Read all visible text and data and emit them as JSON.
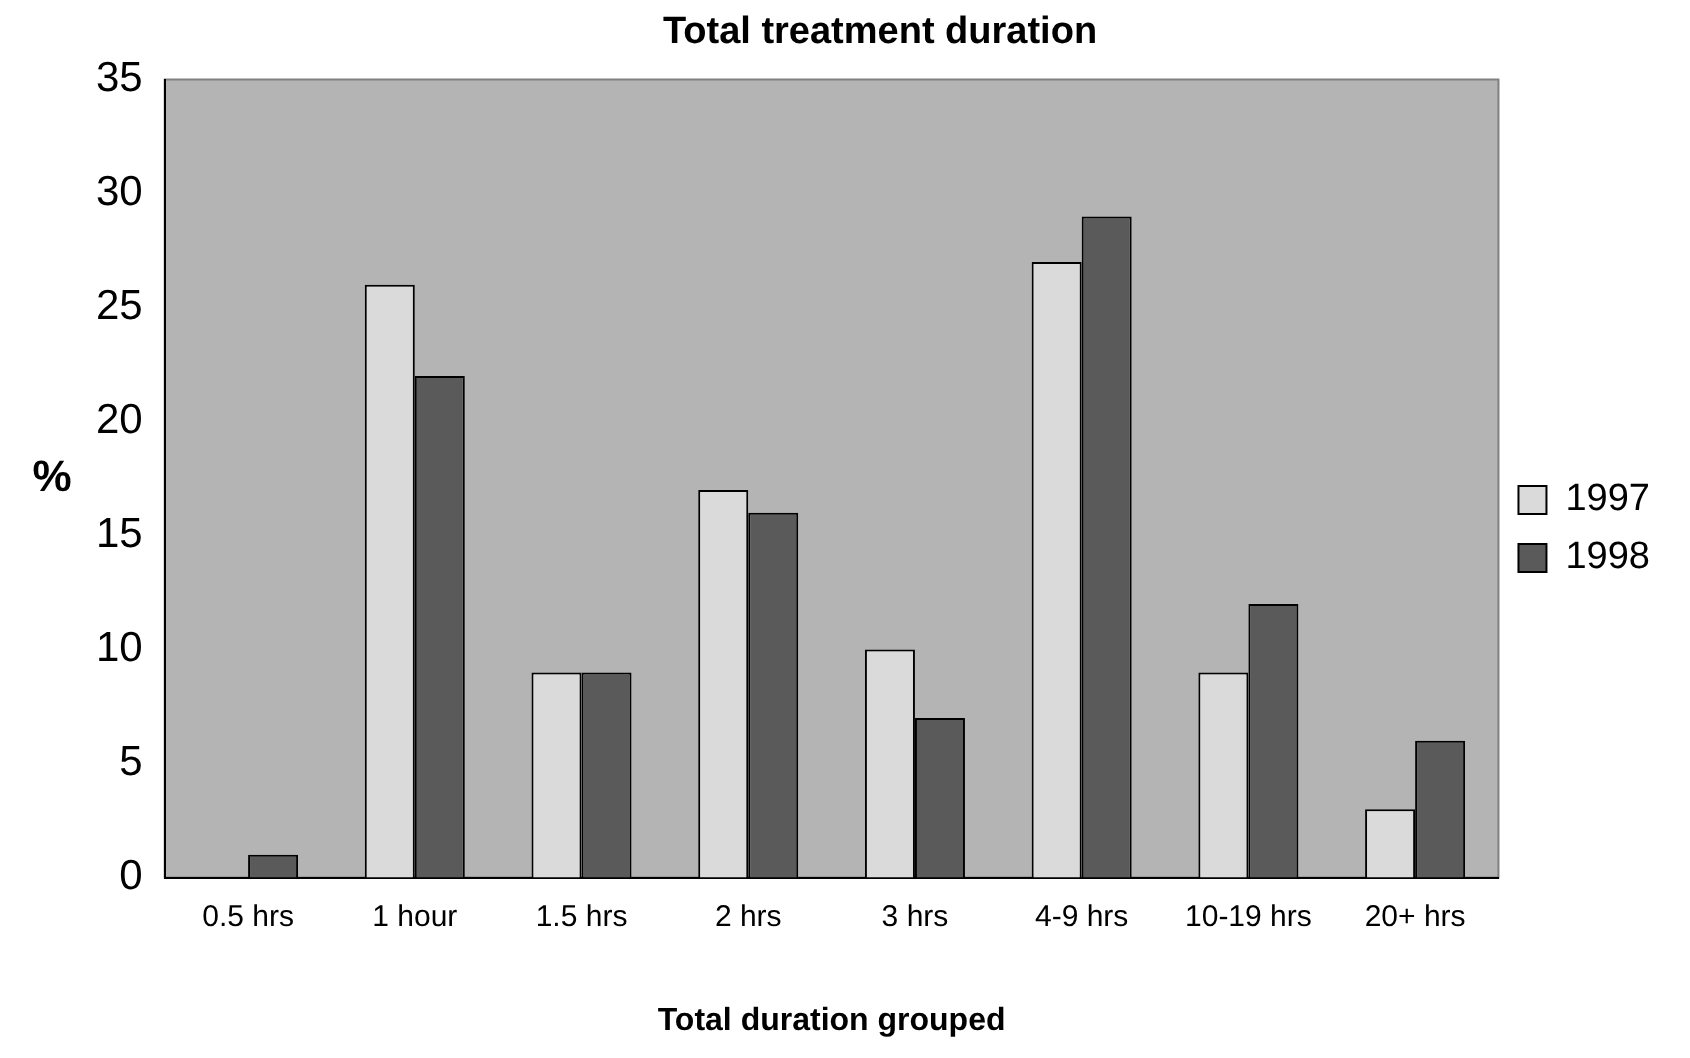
{
  "chart_data": {
    "type": "bar",
    "title": "Total treatment duration",
    "xlabel": "Total duration grouped",
    "ylabel": "%",
    "categories": [
      "0.5 hrs",
      "1 hour",
      "1.5 hrs",
      "2 hrs",
      "3 hrs",
      "4-9 hrs",
      "10-19 hrs",
      "20+ hrs"
    ],
    "series": [
      {
        "name": "1997",
        "color": "#dadada",
        "values": [
          0,
          26,
          9,
          17,
          10,
          27,
          9,
          3
        ]
      },
      {
        "name": "1998",
        "color": "#5a5a5a",
        "values": [
          1,
          22,
          9,
          16,
          7,
          29,
          12,
          6
        ]
      }
    ],
    "ylim": [
      0,
      35
    ],
    "yticks": [
      0,
      5,
      10,
      15,
      20,
      25,
      30,
      35
    ],
    "grid": false,
    "legend": "right"
  }
}
